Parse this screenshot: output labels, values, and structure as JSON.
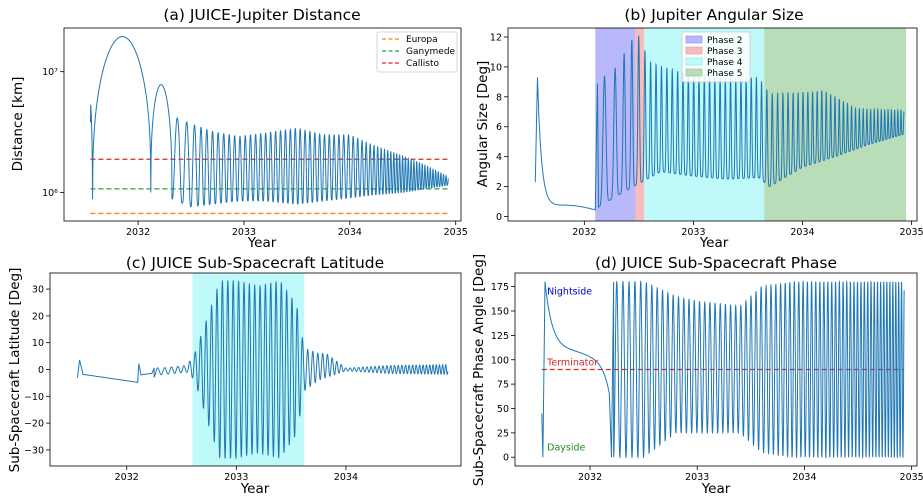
{
  "colors": {
    "series": "#1f77b4",
    "europa": "#ff7f0e",
    "ganymede": "#2ca02c",
    "callisto": "#d62728",
    "phase2": "#b8b8fb",
    "phase3": "#f9bcbc",
    "phase4": "#bff9f9",
    "phase5": "#b9dcb9",
    "latitude_band": "#bff9f9",
    "nightside": "#0000cc",
    "terminator": "#d62728",
    "dayside": "#228b22"
  },
  "chart_data": [
    {
      "id": "a",
      "type": "line",
      "title": "(a) JUICE-Jupiter Distance",
      "xlabel": "Year",
      "ylabel": "Distance [km]",
      "xlim": [
        2031.3,
        2035.05
      ],
      "ylim": [
        580000,
        23000000
      ],
      "yscale": "log",
      "xticks": [
        2032,
        2033,
        2034,
        2035
      ],
      "xtick_labels": [
        "2032",
        "2033",
        "2034",
        "2035"
      ],
      "yticks": [
        1000000,
        10000000
      ],
      "ytick_labels": [
        "10⁶",
        "10⁷"
      ],
      "legend": {
        "position": "top-right",
        "entries": [
          {
            "label": "Europa",
            "color_key": "europa",
            "style": "dashed"
          },
          {
            "label": "Ganymede",
            "color_key": "ganymede",
            "style": "dashed"
          },
          {
            "label": "Callisto",
            "color_key": "callisto",
            "style": "dashed"
          }
        ]
      },
      "hlines": [
        {
          "name": "Europa",
          "y": 671000,
          "color_key": "europa"
        },
        {
          "name": "Ganymede",
          "y": 1070000,
          "color_key": "ganymede"
        },
        {
          "name": "Callisto",
          "y": 1883000,
          "color_key": "callisto"
        }
      ],
      "series": [
        {
          "description": "orbit apoapsis envelope (km)",
          "time": [
            2031.55,
            2031.87,
            2032.1,
            2032.16,
            2032.3,
            2032.5,
            2032.7,
            2032.95,
            2033.2,
            2033.5,
            2033.75,
            2034.0,
            2034.2,
            2034.5,
            2034.7,
            2034.93
          ],
          "apoapsis": [
            3800000,
            19500000,
            1000000,
            7800000,
            4400000,
            3700000,
            3200000,
            2900000,
            3100000,
            3400000,
            3000000,
            3000000,
            2500000,
            2000000,
            1700000,
            1350000
          ]
        },
        {
          "description": "orbit periapsis envelope (km)",
          "time": [
            2031.55,
            2032.1,
            2032.3,
            2032.5,
            2032.7,
            2032.95,
            2033.2,
            2033.5,
            2033.75,
            2034.0,
            2034.2,
            2034.5,
            2034.93
          ],
          "periapsis": [
            880000,
            1000000,
            900000,
            760000,
            800000,
            850000,
            850000,
            800000,
            850000,
            900000,
            950000,
            1000000,
            1150000
          ]
        }
      ]
    },
    {
      "id": "b",
      "type": "line",
      "title": "(b) Jupiter Angular Size",
      "xlabel": "Year",
      "ylabel": "Angular Size [Deg]",
      "xlim": [
        2031.3,
        2035.05
      ],
      "ylim": [
        -0.3,
        12.6
      ],
      "xticks": [
        2032,
        2033,
        2034,
        2035
      ],
      "xtick_labels": [
        "2032",
        "2033",
        "2034",
        "2035"
      ],
      "yticks": [
        0,
        2,
        4,
        6,
        8,
        10,
        12
      ],
      "ytick_labels": [
        "0",
        "2",
        "4",
        "6",
        "8",
        "10",
        "12"
      ],
      "legend": {
        "position": "top-right",
        "entries": [
          {
            "label": "Phase 2",
            "color_key": "phase2",
            "style": "patch"
          },
          {
            "label": "Phase 3",
            "color_key": "phase3",
            "style": "patch"
          },
          {
            "label": "Phase 4",
            "color_key": "phase4",
            "style": "patch"
          },
          {
            "label": "Phase 5",
            "color_key": "phase5",
            "style": "patch"
          }
        ]
      },
      "bands": [
        {
          "name": "Phase 2",
          "x0": 2032.1,
          "x1": 2032.47,
          "color_key": "phase2"
        },
        {
          "name": "Phase 3",
          "x0": 2032.47,
          "x1": 2032.55,
          "color_key": "phase3"
        },
        {
          "name": "Phase 4",
          "x0": 2032.55,
          "x1": 2033.65,
          "color_key": "phase4"
        },
        {
          "name": "Phase 5",
          "x0": 2033.65,
          "x1": 2034.95,
          "color_key": "phase5"
        }
      ],
      "series": [
        {
          "description": "angular size upper envelope (deg)",
          "time": [
            2031.55,
            2031.6,
            2032.1,
            2032.3,
            2032.45,
            2032.5,
            2032.6,
            2032.9,
            2033.3,
            2033.6,
            2033.7,
            2034.0,
            2034.2,
            2034.5,
            2034.93
          ],
          "high": [
            9.3,
            3.0,
            8.9,
            10.0,
            12.0,
            12.1,
            10.3,
            9.6,
            9.2,
            9.3,
            8.2,
            8.3,
            8.4,
            7.2,
            7.1
          ]
        },
        {
          "description": "angular size lower envelope (deg)",
          "time": [
            2031.55,
            2031.75,
            2032.0,
            2032.1,
            2032.3,
            2032.5,
            2032.7,
            2033.0,
            2033.3,
            2033.6,
            2033.7,
            2034.0,
            2034.3,
            2034.6,
            2034.93
          ],
          "low": [
            2.3,
            0.6,
            0.4,
            0.5,
            1.4,
            2.2,
            3.0,
            2.7,
            2.5,
            2.6,
            2.0,
            3.3,
            4.0,
            4.8,
            5.5
          ]
        }
      ]
    },
    {
      "id": "c",
      "type": "line",
      "title": "(c) JUICE Sub-Spacecraft Latitude",
      "xlabel": "Year",
      "ylabel": "Sub-Spacecraft Latitude [Deg]",
      "xlim": [
        2031.3,
        2035.05
      ],
      "ylim": [
        -36,
        36
      ],
      "xticks": [
        2032,
        2033,
        2034
      ],
      "xtick_labels": [
        "2032",
        "2033",
        "2034"
      ],
      "yticks": [
        -30,
        -20,
        -10,
        0,
        10,
        20,
        30
      ],
      "ytick_labels": [
        "−30",
        "−20",
        "−10",
        "0",
        "10",
        "20",
        "30"
      ],
      "bands": [
        {
          "name": "",
          "x0": 2032.6,
          "x1": 2033.62,
          "color_key": "latitude_band"
        }
      ],
      "series": [
        {
          "description": "latitude envelope (deg)",
          "time": [
            2031.55,
            2031.7,
            2032.1,
            2032.3,
            2032.55,
            2032.62,
            2032.75,
            2032.85,
            2033.0,
            2033.2,
            2033.4,
            2033.55,
            2033.62,
            2033.75,
            2033.82,
            2034.0,
            2034.4,
            2034.93
          ],
          "high": [
            3.5,
            -2.0,
            1.8,
            0.5,
            1.5,
            6.0,
            21.0,
            33.0,
            33.0,
            31.0,
            33.0,
            24.0,
            8.0,
            6.0,
            6.0,
            0.5,
            1.5,
            1.8
          ],
          "low": [
            -3.5,
            -2.5,
            -5.0,
            -2.0,
            -1.0,
            -4.0,
            -21.0,
            -33.0,
            -33.0,
            -31.0,
            -33.0,
            -24.0,
            -8.0,
            -4.0,
            -3.0,
            -0.5,
            -1.5,
            -1.8
          ]
        }
      ]
    },
    {
      "id": "d",
      "type": "line",
      "title": "(d) JUICE Sub-Spacecraft Phase",
      "xlabel": "Year",
      "ylabel": "Sub-Spacecraft Phase Angle [Deg]",
      "xlim": [
        2031.3,
        2035.05
      ],
      "ylim": [
        -9,
        189
      ],
      "xticks": [
        2032,
        2033,
        2034,
        2035
      ],
      "xtick_labels": [
        "2032",
        "2033",
        "2034",
        "2035"
      ],
      "yticks": [
        0,
        25,
        50,
        75,
        100,
        125,
        150,
        175
      ],
      "ytick_labels": [
        "0",
        "25",
        "50",
        "75",
        "100",
        "125",
        "150",
        "175"
      ],
      "hlines": [
        {
          "name": "Terminator",
          "y": 90,
          "color_key": "terminator"
        }
      ],
      "annotations": [
        {
          "text": "Nightside",
          "x": 2031.6,
          "y": 170,
          "color_key": "nightside"
        },
        {
          "text": "Terminator",
          "x": 2031.6,
          "y": 97,
          "color_key": "terminator"
        },
        {
          "text": "Dayside",
          "x": 2031.6,
          "y": 10,
          "color_key": "dayside"
        }
      ],
      "series": [
        {
          "description": "phase angle envelope (deg)",
          "time": [
            2031.55,
            2032.2,
            2032.5,
            2032.8,
            2033.0,
            2033.4,
            2033.6,
            2033.9,
            2034.3,
            2034.93
          ],
          "high": [
            180,
            180,
            180,
            165,
            160,
            155,
            175,
            180,
            180,
            180
          ],
          "low": [
            0,
            0,
            0,
            25,
            25,
            25,
            5,
            0,
            0,
            0
          ]
        }
      ]
    }
  ]
}
